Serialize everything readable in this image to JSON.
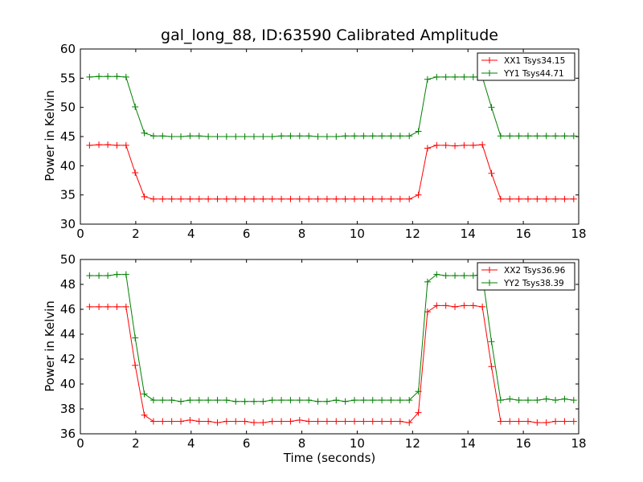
{
  "title": "gal_long_88, ID:63590 Calibrated Amplitude",
  "xlabel": "Time (seconds)",
  "ylabel": "Power in Kelvin",
  "colors": {
    "red": "#ff0000",
    "green": "#008000"
  },
  "chart_data": [
    {
      "type": "line",
      "title": "gal_long_88, ID:63590 Calibrated Amplitude",
      "xlabel": "",
      "ylabel": "Power in Kelvin",
      "xlim": [
        0,
        18
      ],
      "ylim": [
        30,
        60
      ],
      "xticks": [
        0,
        2,
        4,
        6,
        8,
        10,
        12,
        14,
        16,
        18
      ],
      "yticks": [
        30,
        35,
        40,
        45,
        50,
        55,
        60
      ],
      "grid": false,
      "legend_position": "top-right",
      "x": [
        0.33,
        0.67,
        0.99,
        1.32,
        1.65,
        1.98,
        2.31,
        2.64,
        2.97,
        3.3,
        3.63,
        3.96,
        4.29,
        4.62,
        4.95,
        5.28,
        5.61,
        5.94,
        6.27,
        6.6,
        6.93,
        7.26,
        7.59,
        7.92,
        8.25,
        8.58,
        8.91,
        9.24,
        9.57,
        9.9,
        10.23,
        10.56,
        10.89,
        11.22,
        11.55,
        11.88,
        12.21,
        12.54,
        12.87,
        13.2,
        13.53,
        13.86,
        14.19,
        14.52,
        14.85,
        15.18,
        15.51,
        15.84,
        16.17,
        16.5,
        16.83,
        17.16,
        17.49,
        17.82
      ],
      "series": [
        {
          "name": "XX1 Tsys34.15",
          "color": "#ff0000",
          "values": [
            43.5,
            43.6,
            43.6,
            43.5,
            43.5,
            38.8,
            34.7,
            34.3,
            34.3,
            34.3,
            34.3,
            34.3,
            34.3,
            34.3,
            34.3,
            34.3,
            34.3,
            34.3,
            34.3,
            34.3,
            34.3,
            34.3,
            34.3,
            34.3,
            34.3,
            34.3,
            34.3,
            34.3,
            34.3,
            34.3,
            34.3,
            34.3,
            34.3,
            34.3,
            34.3,
            34.3,
            35.0,
            43.0,
            43.5,
            43.5,
            43.4,
            43.5,
            43.5,
            43.6,
            38.7,
            34.3,
            34.3,
            34.3,
            34.3,
            34.3,
            34.3,
            34.3,
            34.3,
            34.3
          ]
        },
        {
          "name": "YY1 Tsys44.71",
          "color": "#008000",
          "values": [
            55.2,
            55.3,
            55.3,
            55.3,
            55.2,
            50.1,
            45.6,
            45.1,
            45.1,
            45.0,
            45.0,
            45.1,
            45.1,
            45.0,
            45.0,
            45.0,
            45.0,
            45.0,
            45.0,
            45.0,
            45.0,
            45.1,
            45.1,
            45.1,
            45.1,
            45.0,
            45.0,
            45.0,
            45.1,
            45.1,
            45.1,
            45.1,
            45.1,
            45.1,
            45.1,
            45.1,
            45.9,
            54.8,
            55.2,
            55.2,
            55.2,
            55.2,
            55.2,
            55.2,
            50.0,
            45.1,
            45.1,
            45.1,
            45.1,
            45.1,
            45.1,
            45.1,
            45.1,
            45.1
          ]
        }
      ]
    },
    {
      "type": "line",
      "title": "",
      "xlabel": "Time (seconds)",
      "ylabel": "Power in Kelvin",
      "xlim": [
        0,
        18
      ],
      "ylim": [
        36,
        50
      ],
      "xticks": [
        0,
        2,
        4,
        6,
        8,
        10,
        12,
        14,
        16,
        18
      ],
      "yticks": [
        36,
        38,
        40,
        42,
        44,
        46,
        48,
        50
      ],
      "grid": false,
      "legend_position": "top-right",
      "x": [
        0.33,
        0.67,
        0.99,
        1.32,
        1.65,
        1.98,
        2.31,
        2.64,
        2.97,
        3.3,
        3.63,
        3.96,
        4.29,
        4.62,
        4.95,
        5.28,
        5.61,
        5.94,
        6.27,
        6.6,
        6.93,
        7.26,
        7.59,
        7.92,
        8.25,
        8.58,
        8.91,
        9.24,
        9.57,
        9.9,
        10.23,
        10.56,
        10.89,
        11.22,
        11.55,
        11.88,
        12.21,
        12.54,
        12.87,
        13.2,
        13.53,
        13.86,
        14.19,
        14.52,
        14.85,
        15.18,
        15.51,
        15.84,
        16.17,
        16.5,
        16.83,
        17.16,
        17.49,
        17.82
      ],
      "series": [
        {
          "name": "XX2 Tsys36.96",
          "color": "#ff0000",
          "values": [
            46.2,
            46.2,
            46.2,
            46.2,
            46.2,
            41.5,
            37.5,
            37.0,
            37.0,
            37.0,
            37.0,
            37.1,
            37.0,
            37.0,
            36.9,
            37.0,
            37.0,
            37.0,
            36.9,
            36.9,
            37.0,
            37.0,
            37.0,
            37.1,
            37.0,
            37.0,
            37.0,
            37.0,
            37.0,
            37.0,
            37.0,
            37.0,
            37.0,
            37.0,
            37.0,
            36.9,
            37.7,
            45.8,
            46.3,
            46.3,
            46.2,
            46.3,
            46.3,
            46.2,
            41.4,
            37.0,
            37.0,
            37.0,
            37.0,
            36.9,
            36.9,
            37.0,
            37.0,
            37.0
          ]
        },
        {
          "name": "YY2 Tsys38.39",
          "color": "#008000",
          "values": [
            48.7,
            48.7,
            48.7,
            48.8,
            48.8,
            43.7,
            39.2,
            38.7,
            38.7,
            38.7,
            38.6,
            38.7,
            38.7,
            38.7,
            38.7,
            38.7,
            38.6,
            38.6,
            38.6,
            38.6,
            38.7,
            38.7,
            38.7,
            38.7,
            38.7,
            38.6,
            38.6,
            38.7,
            38.6,
            38.7,
            38.7,
            38.7,
            38.7,
            38.7,
            38.7,
            38.7,
            39.4,
            48.2,
            48.8,
            48.7,
            48.7,
            48.7,
            48.7,
            48.8,
            43.4,
            38.7,
            38.8,
            38.7,
            38.7,
            38.7,
            38.8,
            38.7,
            38.8,
            38.7
          ]
        }
      ]
    }
  ]
}
